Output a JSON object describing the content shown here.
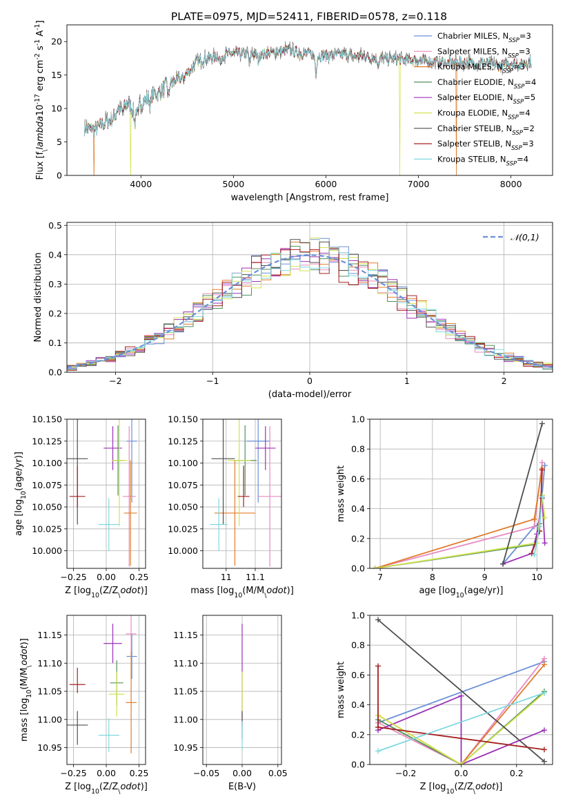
{
  "figure_title": "PLATE=0975, MJD=52411, FIBERID=0578, z=0.118",
  "colors": {
    "Chabrier MILES": "#6a8fd8",
    "Salpeter MILES": "#e889c1",
    "Kroupa MILES": "#e07b2a",
    "Chabrier ELODIE": "#4f8f5a",
    "Salpeter ELODIE": "#9b30b5",
    "Kroupa ELODIE": "#d2e24d",
    "Chabrier STELIB": "#4d4d4d",
    "Salpeter STELIB": "#a51f1f",
    "Kroupa STELIB": "#7fd8df",
    "normal_curve": "#6a8fd8"
  },
  "chart_data": [
    {
      "id": "spectrum",
      "type": "line",
      "title": "PLATE=0975, MJD=52411, FIBERID=0578, z=0.118",
      "xlabel": "wavelength [Angstrom, rest frame]",
      "ylabel": "Flux [f$_\\lambda$10$^{-17}$ erg cm$^{-2}$ s$^{-1}$ A$^{-1}$]",
      "xlim": [
        3200,
        8450
      ],
      "ylim": [
        0,
        22.5
      ],
      "xticks": [
        4000,
        5000,
        6000,
        7000,
        8000
      ],
      "yticks": [
        0,
        5,
        10,
        15,
        20
      ],
      "grid": false,
      "legend": "top-right",
      "legend_entries": [
        {
          "label": "Chabrier MILES, N",
          "sub": "SSP",
          "suffix": "=3"
        },
        {
          "label": "Salpeter MILES, N",
          "sub": "SSP",
          "suffix": "=3"
        },
        {
          "label": "Kroupa MILES, N",
          "sub": "SSP",
          "suffix": "=3"
        },
        {
          "label": "Chabrier ELODIE, N",
          "sub": "SSP",
          "suffix": "=4"
        },
        {
          "label": "Salpeter ELODIE, N",
          "sub": "SSP",
          "suffix": "=5"
        },
        {
          "label": "Kroupa ELODIE, N",
          "sub": "SSP",
          "suffix": "=4"
        },
        {
          "label": "Chabrier STELIB, N",
          "sub": "SSP",
          "suffix": "=2"
        },
        {
          "label": "Salpeter STELIB, N",
          "sub": "SSP",
          "suffix": "=3"
        },
        {
          "label": "Kroupa STELIB, N",
          "sub": "SSP",
          "suffix": "=4"
        }
      ],
      "continuum_x": [
        3390,
        3450,
        3500,
        3550,
        3600,
        3650,
        3700,
        3750,
        3800,
        3850,
        3900,
        3950,
        4000,
        4050,
        4100,
        4150,
        4200,
        4250,
        4300,
        4350,
        4400,
        4450,
        4500,
        4550,
        4600,
        4700,
        4800,
        4900,
        5000,
        5100,
        5200,
        5300,
        5400,
        5500,
        5600,
        5700,
        5800,
        5900,
        6000,
        6100,
        6200,
        6300,
        6400,
        6500,
        6600,
        6700,
        6800,
        6900,
        7000,
        7100,
        7200,
        7300,
        7400,
        7500,
        7600,
        7700,
        7800,
        7900,
        8000,
        8100,
        8200
      ],
      "continuum_y": [
        7.2,
        7.0,
        6.8,
        7.3,
        7.8,
        8.2,
        8.6,
        10.0,
        9.5,
        11.0,
        10.0,
        10.5,
        11.0,
        11.2,
        12.0,
        12.3,
        12.2,
        13.2,
        13.8,
        14.0,
        14.4,
        14.5,
        15.2,
        16.0,
        17.0,
        17.5,
        17.7,
        18.0,
        18.1,
        18.3,
        18.2,
        18.0,
        18.4,
        18.5,
        18.8,
        18.3,
        18.1,
        18.0,
        17.9,
        18.0,
        18.1,
        17.8,
        17.9,
        17.6,
        17.5,
        17.4,
        17.3,
        17.2,
        17.3,
        17.1,
        17.0,
        16.9,
        16.8,
        16.9,
        16.8,
        16.8,
        16.5,
        16.4,
        16.8,
        16.5,
        16.9
      ],
      "absorption_features": [
        {
          "x": 3934,
          "depth": 2.5
        },
        {
          "x": 3969,
          "depth": 2.0
        },
        {
          "x": 4102,
          "depth": 1.5
        },
        {
          "x": 4300,
          "depth": 1.8
        },
        {
          "x": 4861,
          "depth": 1.2
        },
        {
          "x": 5175,
          "depth": 1.8
        },
        {
          "x": 5270,
          "depth": 1.0
        },
        {
          "x": 5893,
          "depth": 2.5
        },
        {
          "x": 6563,
          "depth": 1.0
        }
      ],
      "model_dropouts": [
        {
          "series": "Kroupa MILES",
          "x": 3490
        },
        {
          "series": "Kroupa ELODIE",
          "x": 3890
        },
        {
          "series": "Kroupa ELODIE",
          "x": 6800
        },
        {
          "series": "Kroupa MILES",
          "x": 7410
        }
      ]
    },
    {
      "id": "residuals",
      "type": "histogram",
      "xlabel": "(data-model)/error",
      "ylabel": "Normed distribution",
      "xlim": [
        -2.5,
        2.5
      ],
      "ylim": [
        0,
        0.51
      ],
      "xticks": [
        -2,
        -1,
        0,
        1,
        2
      ],
      "yticks": [
        0.0,
        0.1,
        0.2,
        0.3,
        0.4,
        0.5
      ],
      "grid": true,
      "legend": "top-right",
      "legend_entries": [
        {
          "label": "$\\mathcal{N}(0,1)$",
          "style": "dashed"
        }
      ],
      "bin_width": 0.1,
      "bin_start": -2.5
    },
    {
      "id": "age-vs-Z",
      "type": "scatter",
      "xlabel": "Z [log$_{10}$(Z/Z$_\\odot$)]",
      "ylabel": "age  [log$_{10}$(age/yr)]",
      "xlim": [
        -0.3,
        0.3
      ],
      "ylim": [
        9.98,
        10.15
      ],
      "xticks": [
        -0.25,
        0.0,
        0.25
      ],
      "yticks": [
        10.0,
        10.025,
        10.05,
        10.075,
        10.1,
        10.125,
        10.15
      ],
      "grid": true,
      "points": [
        {
          "series": "Chabrier MILES",
          "x": 0.195,
          "y": 10.125,
          "xerr": [
            0.04,
            0.04
          ],
          "yerr": [
            0.07,
            0.07
          ]
        },
        {
          "series": "Salpeter MILES",
          "x": 0.175,
          "y": 10.062,
          "xerr": [
            0.05,
            0.05
          ],
          "yerr": [
            0.08,
            0.08
          ]
        },
        {
          "series": "Kroupa MILES",
          "x": 0.185,
          "y": 10.043,
          "xerr": [
            0.05,
            0.05
          ],
          "yerr": [
            0.06,
            0.06
          ]
        },
        {
          "series": "Chabrier ELODIE",
          "x": 0.09,
          "y": 10.103,
          "xerr": [
            0.04,
            0.04
          ],
          "yerr": [
            0.04,
            0.04
          ]
        },
        {
          "series": "Salpeter ELODIE",
          "x": 0.05,
          "y": 10.117,
          "xerr": [
            0.07,
            0.07
          ],
          "yerr": [
            0.025,
            0.025
          ]
        },
        {
          "series": "Kroupa ELODIE",
          "x": 0.1,
          "y": 10.103,
          "xerr": [
            0.06,
            0.06
          ],
          "yerr": [
            0.075,
            0.075
          ]
        },
        {
          "series": "Chabrier STELIB",
          "x": -0.22,
          "y": 10.105,
          "xerr": [
            0.08,
            0.08
          ],
          "yerr": [
            0.075,
            0.075
          ]
        },
        {
          "series": "Salpeter STELIB",
          "x": -0.22,
          "y": 10.062,
          "xerr": [
            0.06,
            0.06
          ],
          "yerr": [
            0.012,
            0.035
          ]
        },
        {
          "series": "Kroupa STELIB",
          "x": 0.02,
          "y": 10.03,
          "xerr": [
            0.08,
            0.08
          ],
          "yerr": [
            0.03,
            0.03
          ]
        }
      ]
    },
    {
      "id": "age-vs-mass",
      "type": "scatter",
      "xlabel": "mass [log$_{10}$(M/M$_\\odot$)]",
      "ylabel": "",
      "xlim": [
        10.92,
        11.19
      ],
      "ylim": [
        9.98,
        10.15
      ],
      "xticks": [
        11.0,
        11.1
      ],
      "yticks": [
        10.0,
        10.025,
        10.05,
        10.075,
        10.1,
        10.125,
        10.15
      ],
      "grid": true,
      "points": [
        {
          "series": "Chabrier MILES",
          "x": 11.11,
          "y": 10.125,
          "xerr": [
            0.04,
            0.04
          ],
          "yerr": [
            0.07,
            0.07
          ]
        },
        {
          "series": "Salpeter MILES",
          "x": 11.15,
          "y": 10.062,
          "xerr": [
            0.04,
            0.04
          ],
          "yerr": [
            0.08,
            0.08
          ]
        },
        {
          "series": "Kroupa MILES",
          "x": 11.03,
          "y": 10.043,
          "xerr": [
            0.07,
            0.07
          ],
          "yerr": [
            0.06,
            0.06
          ]
        },
        {
          "series": "Chabrier ELODIE",
          "x": 11.065,
          "y": 10.103,
          "xerr": [
            0.04,
            0.04
          ],
          "yerr": [
            0.04,
            0.04
          ]
        },
        {
          "series": "Salpeter ELODIE",
          "x": 11.135,
          "y": 10.117,
          "xerr": [
            0.035,
            0.035
          ],
          "yerr": [
            0.025,
            0.025
          ]
        },
        {
          "series": "Kroupa ELODIE",
          "x": 11.045,
          "y": 10.103,
          "xerr": [
            0.04,
            0.04
          ],
          "yerr": [
            0.075,
            0.075
          ]
        },
        {
          "series": "Chabrier STELIB",
          "x": 10.99,
          "y": 10.105,
          "xerr": [
            0.04,
            0.04
          ],
          "yerr": [
            0.075,
            0.075
          ]
        },
        {
          "series": "Salpeter STELIB",
          "x": 11.06,
          "y": 10.062,
          "xerr": [
            0.02,
            0.02
          ],
          "yerr": [
            0.012,
            0.035
          ]
        },
        {
          "series": "Kroupa STELIB",
          "x": 10.975,
          "y": 10.03,
          "xerr": [
            0.03,
            0.03
          ],
          "yerr": [
            0.03,
            0.03
          ]
        }
      ]
    },
    {
      "id": "mass-weight-vs-age",
      "type": "line",
      "xlabel": "age  [log$_{10}$(age/yr)]",
      "ylabel": "mass weight",
      "xlim": [
        6.8,
        10.3
      ],
      "ylim": [
        0,
        1.0
      ],
      "xticks": [
        7,
        8,
        9,
        10
      ],
      "yticks": [
        0.0,
        0.2,
        0.4,
        0.6,
        0.8,
        1.0
      ],
      "grid": true,
      "series": [
        {
          "name": "Chabrier MILES",
          "x": [
            9.35,
            9.95,
            10.05,
            10.15
          ],
          "y": [
            0.03,
            0.28,
            0.3,
            0.69
          ]
        },
        {
          "name": "Salpeter MILES",
          "x": [
            6.9,
            9.95,
            10.1
          ],
          "y": [
            0.0,
            0.28,
            0.71
          ]
        },
        {
          "name": "Kroupa MILES",
          "x": [
            6.9,
            9.95,
            10.1
          ],
          "y": [
            0.0,
            0.33,
            0.67
          ]
        },
        {
          "name": "Chabrier ELODIE",
          "x": [
            6.9,
            9.95,
            10.05,
            10.1
          ],
          "y": [
            0.0,
            0.16,
            0.3,
            0.49
          ]
        },
        {
          "name": "Salpeter ELODIE",
          "x": [
            9.35,
            9.9,
            10.0,
            10.1,
            10.15
          ],
          "y": [
            0.03,
            0.1,
            0.23,
            0.47,
            0.17
          ]
        },
        {
          "name": "Kroupa ELODIE",
          "x": [
            6.9,
            10.0,
            10.1,
            10.15
          ],
          "y": [
            0.0,
            0.17,
            0.49,
            0.34
          ]
        },
        {
          "name": "Chabrier STELIB",
          "x": [
            9.35,
            10.1
          ],
          "y": [
            0.03,
            0.97
          ]
        },
        {
          "name": "Salpeter STELIB",
          "x": [
            9.9,
            10.05,
            10.1
          ],
          "y": [
            0.1,
            0.25,
            0.66
          ]
        },
        {
          "name": "Kroupa STELIB",
          "x": [
            9.95,
            10.05,
            10.1
          ],
          "y": [
            0.09,
            0.28,
            0.48
          ]
        }
      ]
    },
    {
      "id": "mass-vs-Z",
      "type": "scatter",
      "xlabel": "Z [log$_{10}$(Z/Z$_\\odot$)]",
      "ylabel": "mass [log$_{10}$(M/M$_\\odot$)]",
      "xlim": [
        -0.3,
        0.3
      ],
      "ylim": [
        10.92,
        11.185
      ],
      "xticks": [
        -0.25,
        0.0,
        0.25
      ],
      "yticks": [
        10.95,
        11.0,
        11.05,
        11.1,
        11.15
      ],
      "grid": true,
      "points": [
        {
          "series": "Chabrier MILES",
          "x": 0.195,
          "y": 11.112,
          "xerr": [
            0.04,
            0.04
          ],
          "yerr": [
            0.04,
            0.04
          ]
        },
        {
          "series": "Salpeter MILES",
          "x": 0.19,
          "y": 11.152,
          "xerr": [
            0.04,
            0.04
          ],
          "yerr": [
            0.06,
            0.06
          ]
        },
        {
          "series": "Kroupa MILES",
          "x": 0.19,
          "y": 11.03,
          "xerr": [
            0.04,
            0.04
          ],
          "yerr": [
            0.09,
            0.09
          ]
        },
        {
          "series": "Chabrier ELODIE",
          "x": 0.08,
          "y": 11.065,
          "xerr": [
            0.05,
            0.05
          ],
          "yerr": [
            0.04,
            0.04
          ]
        },
        {
          "series": "Salpeter ELODIE",
          "x": 0.05,
          "y": 11.135,
          "xerr": [
            0.07,
            0.07
          ],
          "yerr": [
            0.035,
            0.035
          ]
        },
        {
          "series": "Kroupa ELODIE",
          "x": 0.08,
          "y": 11.045,
          "xerr": [
            0.06,
            0.06
          ],
          "yerr": [
            0.04,
            0.04
          ]
        },
        {
          "series": "Chabrier STELIB",
          "x": -0.22,
          "y": 10.99,
          "xerr": [
            0.08,
            0.08
          ],
          "yerr": [
            0.035,
            0.025
          ]
        },
        {
          "series": "Salpeter STELIB",
          "x": -0.22,
          "y": 11.062,
          "xerr": [
            0.06,
            0.06
          ],
          "yerr": [
            0.015,
            0.03
          ]
        },
        {
          "series": "Kroupa STELIB",
          "x": 0.02,
          "y": 10.972,
          "xerr": [
            0.08,
            0.08
          ],
          "yerr": [
            0.03,
            0.03
          ]
        }
      ]
    },
    {
      "id": "mass-vs-EBV",
      "type": "scatter",
      "xlabel": "E(B-V)",
      "ylabel": "",
      "xlim": [
        -0.055,
        0.055
      ],
      "ylim": [
        10.92,
        11.185
      ],
      "xticks": [
        -0.05,
        0.0,
        0.05
      ],
      "yticks": [
        10.95,
        11.0,
        11.05,
        11.1,
        11.15
      ],
      "grid": true,
      "points": [
        {
          "series": "Salpeter ELODIE",
          "x": 0.0,
          "y": 11.08,
          "xerr": [
            0,
            0
          ],
          "yerr": [
            0.09,
            0.09
          ]
        },
        {
          "series": "Kroupa ELODIE",
          "x": 0.0,
          "y": 11.045,
          "xerr": [
            0,
            0
          ],
          "yerr": [
            0.04,
            0.04
          ]
        },
        {
          "series": "Chabrier STELIB",
          "x": 0.0,
          "y": 10.99,
          "xerr": [
            0,
            0
          ],
          "yerr": [
            0.025,
            0.025
          ]
        },
        {
          "series": "Kroupa STELIB",
          "x": 0.0,
          "y": 10.972,
          "xerr": [
            0,
            0
          ],
          "yerr": [
            0.025,
            0.025
          ]
        }
      ]
    },
    {
      "id": "mass-weight-vs-Z",
      "type": "line",
      "xlabel": "Z [log$_{10}$(Z/Z$_\\odot$)]",
      "ylabel": "mass weight",
      "xlim": [
        -0.33,
        0.33
      ],
      "ylim": [
        0,
        1.0
      ],
      "xticks": [
        -0.2,
        0.0,
        0.2
      ],
      "yticks": [
        0.0,
        0.2,
        0.4,
        0.6,
        0.8,
        1.0
      ],
      "grid": true,
      "series": [
        {
          "name": "Chabrier MILES",
          "x": [
            -0.3,
            0.3
          ],
          "y": [
            0.28,
            0.69
          ]
        },
        {
          "name": "Salpeter MILES",
          "x": [
            -0.3,
            0.0,
            0.3
          ],
          "y": [
            0.28,
            0.0,
            0.71
          ]
        },
        {
          "name": "Kroupa MILES",
          "x": [
            -0.3,
            0.0,
            0.3
          ],
          "y": [
            0.33,
            0.0,
            0.67
          ]
        },
        {
          "name": "Chabrier ELODIE",
          "x": [
            -0.3,
            0.0,
            0.3
          ],
          "y": [
            0.3,
            0.0,
            0.49
          ]
        },
        {
          "name": "Salpeter ELODIE",
          "x": [
            -0.3,
            0.0,
            0.0,
            0.3
          ],
          "y": [
            0.23,
            0.46,
            0.0,
            0.23
          ]
        },
        {
          "name": "Kroupa ELODIE",
          "x": [
            -0.3,
            0.0,
            0.3
          ],
          "y": [
            0.33,
            0.0,
            0.48
          ]
        },
        {
          "name": "Chabrier STELIB",
          "x": [
            -0.3,
            0.3
          ],
          "y": [
            0.97,
            0.02
          ]
        },
        {
          "name": "Salpeter STELIB",
          "x": [
            -0.3,
            -0.3,
            0.3
          ],
          "y": [
            0.66,
            0.25,
            0.1
          ]
        },
        {
          "name": "Kroupa STELIB",
          "x": [
            -0.3,
            0.3
          ],
          "y": [
            0.09,
            0.48
          ]
        }
      ]
    }
  ]
}
